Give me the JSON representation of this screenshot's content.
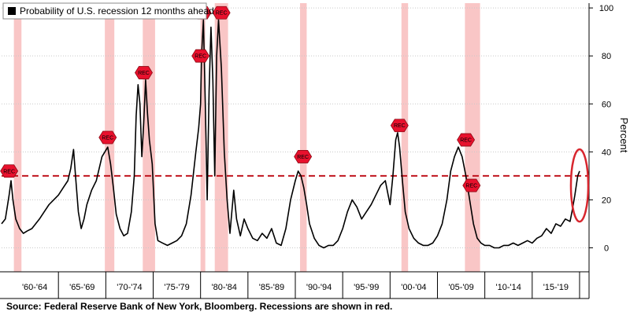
{
  "chart_data": {
    "type": "line",
    "title": "",
    "legend": "Probability of U.S. recession 12 months ahead",
    "legend_placement": "top-left",
    "xlabel": "",
    "ylabel": "Percent",
    "ylim": [
      -10,
      102
    ],
    "yticks": [
      0,
      20,
      40,
      60,
      80,
      100
    ],
    "x_range": [
      1959.0,
      2021.0
    ],
    "x_ticks": [
      {
        "label": "'60-'64",
        "x": 1962.5
      },
      {
        "label": "'65-'69",
        "x": 1967.5
      },
      {
        "label": "'70-'74",
        "x": 1972.5
      },
      {
        "label": "'75-'79",
        "x": 1977.5
      },
      {
        "label": "'80-'84",
        "x": 1982.5
      },
      {
        "label": "'85-'89",
        "x": 1987.5
      },
      {
        "label": "'90-'94",
        "x": 1992.5
      },
      {
        "label": "'95-'99",
        "x": 1997.5
      },
      {
        "label": "'00-'04",
        "x": 2002.5
      },
      {
        "label": "'05-'09",
        "x": 2007.5
      },
      {
        "label": "'10-'14",
        "x": 2012.5
      },
      {
        "label": "'15-'19",
        "x": 2017.5
      }
    ],
    "x_separators": [
      1965,
      1970,
      1975,
      1980,
      1985,
      1990,
      1995,
      2000,
      2005,
      2010,
      2015,
      2020
    ],
    "threshold": 30,
    "highlight_ellipse": {
      "x": 2020.0,
      "y": 26
    },
    "recessions": [
      [
        1960.3,
        1961.1
      ],
      [
        1969.9,
        1970.9
      ],
      [
        1973.9,
        1975.2
      ],
      [
        1980.0,
        1980.5
      ],
      [
        1981.5,
        1982.9
      ],
      [
        1990.5,
        1991.2
      ],
      [
        2001.2,
        2001.9
      ],
      [
        2007.9,
        2009.5
      ]
    ],
    "rec_markers": [
      {
        "x": 1959.8,
        "y": 32,
        "text": "REC"
      },
      {
        "x": 1970.2,
        "y": 46,
        "text": "REC"
      },
      {
        "x": 1974.0,
        "y": 73,
        "text": "REC"
      },
      {
        "x": 1980.0,
        "y": 80,
        "text": "REC"
      },
      {
        "x": 1980.2,
        "y": 98,
        "text": "REC"
      },
      {
        "x": 1982.2,
        "y": 98,
        "text": "REC"
      },
      {
        "x": 1990.8,
        "y": 38,
        "text": "REC"
      },
      {
        "x": 2001.0,
        "y": 51,
        "text": "REC"
      },
      {
        "x": 2008.0,
        "y": 45,
        "text": "REC"
      },
      {
        "x": 2008.6,
        "y": 26,
        "text": "REC"
      }
    ],
    "series": [
      {
        "values": [
          [
            1959.0,
            10
          ],
          [
            1959.4,
            12
          ],
          [
            1959.8,
            22
          ],
          [
            1960.0,
            28
          ],
          [
            1960.2,
            20
          ],
          [
            1960.5,
            12
          ],
          [
            1960.9,
            8
          ],
          [
            1961.3,
            6
          ],
          [
            1961.7,
            7
          ],
          [
            1962.2,
            8
          ],
          [
            1962.6,
            10
          ],
          [
            1963.0,
            12
          ],
          [
            1963.5,
            15
          ],
          [
            1964.0,
            18
          ],
          [
            1964.5,
            20
          ],
          [
            1965.0,
            22
          ],
          [
            1965.5,
            25
          ],
          [
            1966.0,
            28
          ],
          [
            1966.3,
            33
          ],
          [
            1966.6,
            41
          ],
          [
            1966.8,
            30
          ],
          [
            1967.1,
            15
          ],
          [
            1967.4,
            8
          ],
          [
            1967.7,
            12
          ],
          [
            1968.0,
            18
          ],
          [
            1968.5,
            24
          ],
          [
            1969.0,
            28
          ],
          [
            1969.3,
            33
          ],
          [
            1969.6,
            38
          ],
          [
            1969.9,
            40
          ],
          [
            1970.2,
            42
          ],
          [
            1970.5,
            35
          ],
          [
            1970.8,
            25
          ],
          [
            1971.1,
            14
          ],
          [
            1971.5,
            8
          ],
          [
            1971.9,
            5
          ],
          [
            1972.3,
            6
          ],
          [
            1972.7,
            15
          ],
          [
            1973.0,
            30
          ],
          [
            1973.2,
            55
          ],
          [
            1973.4,
            68
          ],
          [
            1973.6,
            60
          ],
          [
            1973.8,
            38
          ],
          [
            1974.0,
            52
          ],
          [
            1974.2,
            70
          ],
          [
            1974.4,
            56
          ],
          [
            1974.6,
            45
          ],
          [
            1974.9,
            35
          ],
          [
            1975.2,
            10
          ],
          [
            1975.5,
            3
          ],
          [
            1976.0,
            2
          ],
          [
            1976.5,
            1
          ],
          [
            1977.0,
            2
          ],
          [
            1977.5,
            3
          ],
          [
            1978.0,
            5
          ],
          [
            1978.5,
            10
          ],
          [
            1979.0,
            22
          ],
          [
            1979.5,
            40
          ],
          [
            1979.8,
            50
          ],
          [
            1980.0,
            60
          ],
          [
            1980.1,
            80
          ],
          [
            1980.3,
            95
          ],
          [
            1980.5,
            60
          ],
          [
            1980.7,
            20
          ],
          [
            1980.9,
            65
          ],
          [
            1981.1,
            92
          ],
          [
            1981.3,
            70
          ],
          [
            1981.5,
            30
          ],
          [
            1981.7,
            80
          ],
          [
            1981.9,
            95
          ],
          [
            1982.2,
            75
          ],
          [
            1982.5,
            40
          ],
          [
            1982.8,
            20
          ],
          [
            1983.1,
            6
          ],
          [
            1983.5,
            24
          ],
          [
            1983.8,
            12
          ],
          [
            1984.2,
            5
          ],
          [
            1984.6,
            12
          ],
          [
            1985.0,
            8
          ],
          [
            1985.5,
            4
          ],
          [
            1986.0,
            3
          ],
          [
            1986.5,
            6
          ],
          [
            1987.0,
            4
          ],
          [
            1987.5,
            8
          ],
          [
            1988.0,
            2
          ],
          [
            1988.5,
            1
          ],
          [
            1989.0,
            8
          ],
          [
            1989.5,
            20
          ],
          [
            1990.0,
            28
          ],
          [
            1990.3,
            32
          ],
          [
            1990.6,
            30
          ],
          [
            1990.9,
            25
          ],
          [
            1991.2,
            18
          ],
          [
            1991.5,
            10
          ],
          [
            1992.0,
            4
          ],
          [
            1992.5,
            1
          ],
          [
            1993.0,
            0
          ],
          [
            1993.5,
            1
          ],
          [
            1994.0,
            1
          ],
          [
            1994.5,
            3
          ],
          [
            1995.0,
            8
          ],
          [
            1995.5,
            15
          ],
          [
            1996.0,
            20
          ],
          [
            1996.5,
            17
          ],
          [
            1997.0,
            12
          ],
          [
            1997.5,
            15
          ],
          [
            1998.0,
            18
          ],
          [
            1998.5,
            22
          ],
          [
            1999.0,
            26
          ],
          [
            1999.5,
            28
          ],
          [
            1999.8,
            22
          ],
          [
            2000.0,
            18
          ],
          [
            2000.3,
            30
          ],
          [
            2000.6,
            45
          ],
          [
            2000.8,
            48
          ],
          [
            2001.0,
            42
          ],
          [
            2001.3,
            28
          ],
          [
            2001.6,
            15
          ],
          [
            2002.0,
            8
          ],
          [
            2002.5,
            4
          ],
          [
            2003.0,
            2
          ],
          [
            2003.5,
            1
          ],
          [
            2004.0,
            1
          ],
          [
            2004.5,
            2
          ],
          [
            2005.0,
            5
          ],
          [
            2005.5,
            10
          ],
          [
            2006.0,
            20
          ],
          [
            2006.4,
            32
          ],
          [
            2006.8,
            38
          ],
          [
            2007.2,
            42
          ],
          [
            2007.6,
            38
          ],
          [
            2008.0,
            30
          ],
          [
            2008.4,
            20
          ],
          [
            2008.8,
            10
          ],
          [
            2009.2,
            4
          ],
          [
            2009.6,
            2
          ],
          [
            2010.0,
            1
          ],
          [
            2010.5,
            1
          ],
          [
            2011.0,
            0
          ],
          [
            2011.5,
            0
          ],
          [
            2012.0,
            1
          ],
          [
            2012.5,
            1
          ],
          [
            2013.0,
            2
          ],
          [
            2013.5,
            1
          ],
          [
            2014.0,
            2
          ],
          [
            2014.5,
            3
          ],
          [
            2015.0,
            2
          ],
          [
            2015.5,
            4
          ],
          [
            2016.0,
            5
          ],
          [
            2016.5,
            8
          ],
          [
            2017.0,
            6
          ],
          [
            2017.5,
            10
          ],
          [
            2018.0,
            9
          ],
          [
            2018.5,
            12
          ],
          [
            2019.0,
            11
          ],
          [
            2019.2,
            15
          ],
          [
            2019.5,
            22
          ],
          [
            2019.8,
            30
          ],
          [
            2020.0,
            32
          ]
        ]
      }
    ]
  },
  "source_text": "Source: Federal Reserve Bank of New York, Bloomberg. Recessions are shown in red."
}
